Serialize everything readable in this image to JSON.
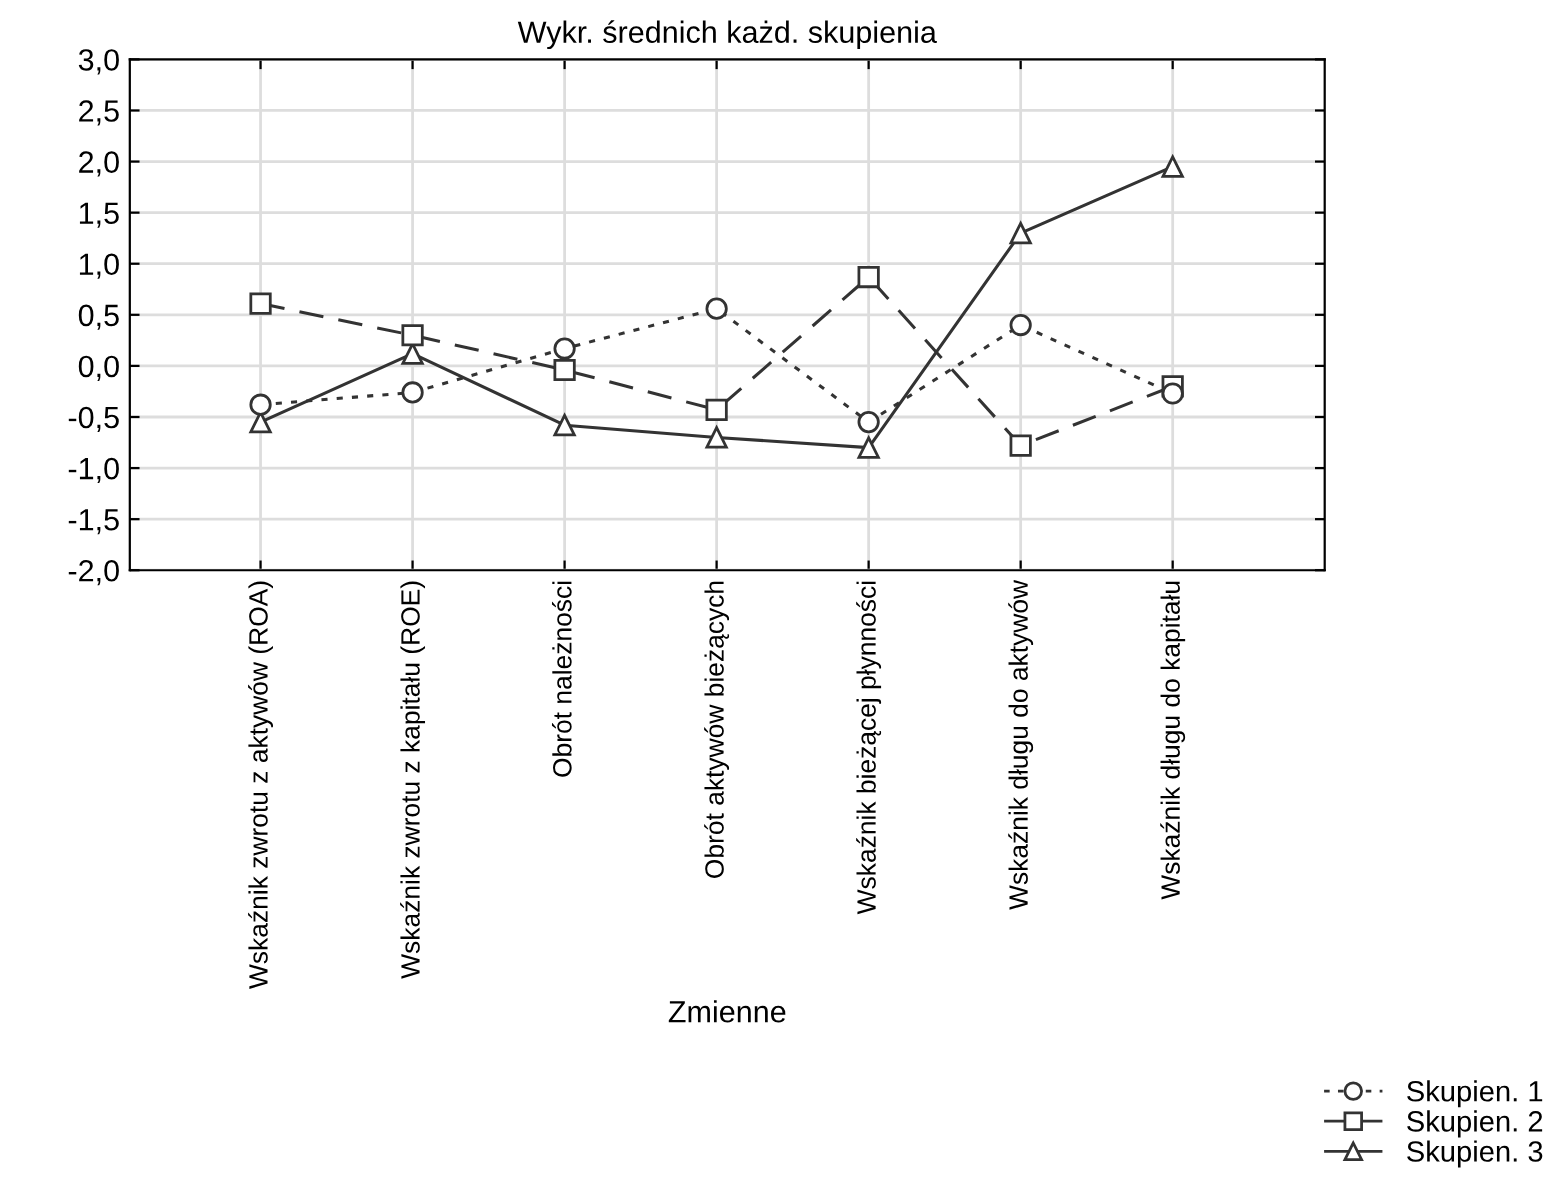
{
  "chart_data": {
    "type": "line",
    "title": "Wykr. średnich każd. skupienia",
    "xlabel": "Zmienne",
    "categories": [
      "Wskaźnik zwrotu z aktywów (ROA)",
      "Wskaźnik zwrotu z kapitału (ROE)",
      "Obrót należności",
      "Obrót aktywów bieżących",
      "Wskaźnik bieżącej płynności",
      "Wskaźnik długu do aktywów",
      "Wskaźnik długu do kapitału"
    ],
    "series": [
      {
        "name": "Skupien. 1",
        "color": "#333333",
        "marker": "circle",
        "line_style": "dotted",
        "values": [
          -0.38,
          -0.26,
          0.17,
          0.56,
          -0.55,
          0.4,
          -0.27
        ]
      },
      {
        "name": "Skupien. 2",
        "color": "#333333",
        "marker": "square",
        "line_style": "dashed",
        "values": [
          0.61,
          0.3,
          -0.04,
          -0.43,
          0.87,
          -0.78,
          -0.2
        ]
      },
      {
        "name": "Skupien. 3",
        "color": "#333333",
        "marker": "triangle",
        "line_style": "solid",
        "values": [
          -0.55,
          0.12,
          -0.58,
          -0.7,
          -0.8,
          1.3,
          1.95
        ]
      }
    ],
    "ylim": [
      -2.0,
      3.0
    ],
    "yticks": [
      {
        "value": -2.0,
        "label": "-2,0"
      },
      {
        "value": -1.5,
        "label": "-1,5"
      },
      {
        "value": -1.0,
        "label": "-1,0"
      },
      {
        "value": -0.5,
        "label": "-0,5"
      },
      {
        "value": 0.0,
        "label": "0,0"
      },
      {
        "value": 0.5,
        "label": "0,5"
      },
      {
        "value": 1.0,
        "label": "1,0"
      },
      {
        "value": 1.5,
        "label": "1,5"
      },
      {
        "value": 2.0,
        "label": "2,0"
      },
      {
        "value": 2.5,
        "label": "2,5"
      },
      {
        "value": 3.0,
        "label": "3,0"
      }
    ],
    "grid": true,
    "legend": "bottom right"
  }
}
